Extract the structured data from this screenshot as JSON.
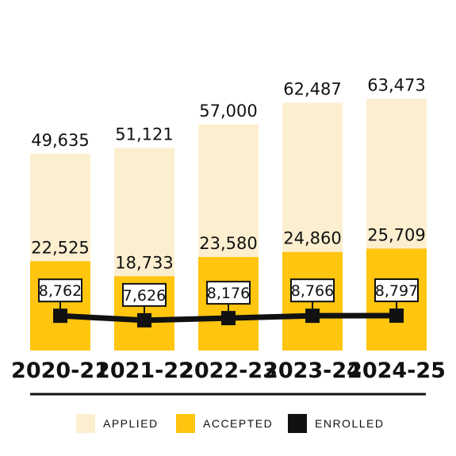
{
  "colors": {
    "applied": "#FCEFD0",
    "accepted": "#FFC50F",
    "enrolled": "#111111",
    "axis": "#111111"
  },
  "chart_data": {
    "type": "bar",
    "categories": [
      "2020-21",
      "2021-22",
      "2022-23",
      "2023-24",
      "2024-25"
    ],
    "series": [
      {
        "name": "APPLIED",
        "values": [
          49635,
          51121,
          57000,
          62487,
          63473
        ],
        "labels": [
          "49,635",
          "51,121",
          "57,000",
          "62,487",
          "63,473"
        ]
      },
      {
        "name": "ACCEPTED",
        "values": [
          22525,
          18733,
          23580,
          24860,
          25709
        ],
        "labels": [
          "22,525",
          "18,733",
          "23,580",
          "24,860",
          "25,709"
        ]
      },
      {
        "name": "ENROLLED",
        "values": [
          8762,
          7626,
          8176,
          8766,
          8797
        ],
        "labels": [
          "8,762",
          "7,626",
          "8,176",
          "8,766",
          "8,797"
        ]
      }
    ],
    "title": "",
    "xlabel": "",
    "ylabel": "",
    "grid": false,
    "legend": "bottom-center"
  }
}
